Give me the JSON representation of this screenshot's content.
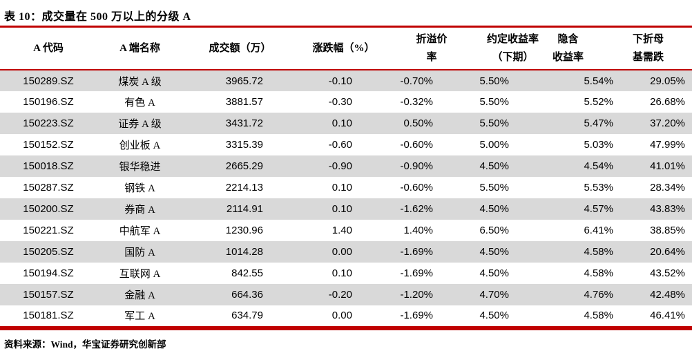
{
  "title": "表 10：成交量在 500 万以上的分级 A",
  "source": "资料来源：Wind，华宝证券研究创新部",
  "colors": {
    "accent_red": "#C00000",
    "row_stripe": "#D9D9D9",
    "text": "#000000"
  },
  "table": {
    "columns": [
      {
        "line1": "A 代码",
        "line2": ""
      },
      {
        "line1": "A 端名称",
        "line2": ""
      },
      {
        "line1": "成交额（万）",
        "line2": ""
      },
      {
        "line1": "涨跌幅（%）",
        "line2": ""
      },
      {
        "line1": "折溢价",
        "line2": "率"
      },
      {
        "line1": "约定收益率",
        "line2": "（下期）"
      },
      {
        "line1": "隐含",
        "line2": "收益率"
      },
      {
        "line1": "下折母",
        "line2": "基需跌"
      }
    ],
    "rows": [
      [
        "150289.SZ",
        "煤炭 A 级",
        "3965.72",
        "-0.10",
        "-0.70%",
        "5.50%",
        "5.54%",
        "29.05%"
      ],
      [
        "150196.SZ",
        "有色 A",
        "3881.57",
        "-0.30",
        "-0.32%",
        "5.50%",
        "5.52%",
        "26.68%"
      ],
      [
        "150223.SZ",
        "证券 A 级",
        "3431.72",
        "0.10",
        "0.50%",
        "5.50%",
        "5.47%",
        "37.20%"
      ],
      [
        "150152.SZ",
        "创业板 A",
        "3315.39",
        "-0.60",
        "-0.60%",
        "5.00%",
        "5.03%",
        "47.99%"
      ],
      [
        "150018.SZ",
        "银华稳进",
        "2665.29",
        "-0.90",
        "-0.90%",
        "4.50%",
        "4.54%",
        "41.01%"
      ],
      [
        "150287.SZ",
        "钢铁 A",
        "2214.13",
        "0.10",
        "-0.60%",
        "5.50%",
        "5.53%",
        "28.34%"
      ],
      [
        "150200.SZ",
        "券商 A",
        "2114.91",
        "0.10",
        "-1.62%",
        "4.50%",
        "4.57%",
        "43.83%"
      ],
      [
        "150221.SZ",
        "中航军 A",
        "1230.96",
        "1.40",
        "1.40%",
        "6.50%",
        "6.41%",
        "38.85%"
      ],
      [
        "150205.SZ",
        "国防 A",
        "1014.28",
        "0.00",
        "-1.69%",
        "4.50%",
        "4.58%",
        "20.64%"
      ],
      [
        "150194.SZ",
        "互联网 A",
        "842.55",
        "0.10",
        "-1.69%",
        "4.50%",
        "4.58%",
        "43.52%"
      ],
      [
        "150157.SZ",
        "金融 A",
        "664.36",
        "-0.20",
        "-1.20%",
        "4.70%",
        "4.76%",
        "42.48%"
      ],
      [
        "150181.SZ",
        "军工 A",
        "634.79",
        "0.00",
        "-1.69%",
        "4.50%",
        "4.58%",
        "46.41%"
      ]
    ]
  }
}
